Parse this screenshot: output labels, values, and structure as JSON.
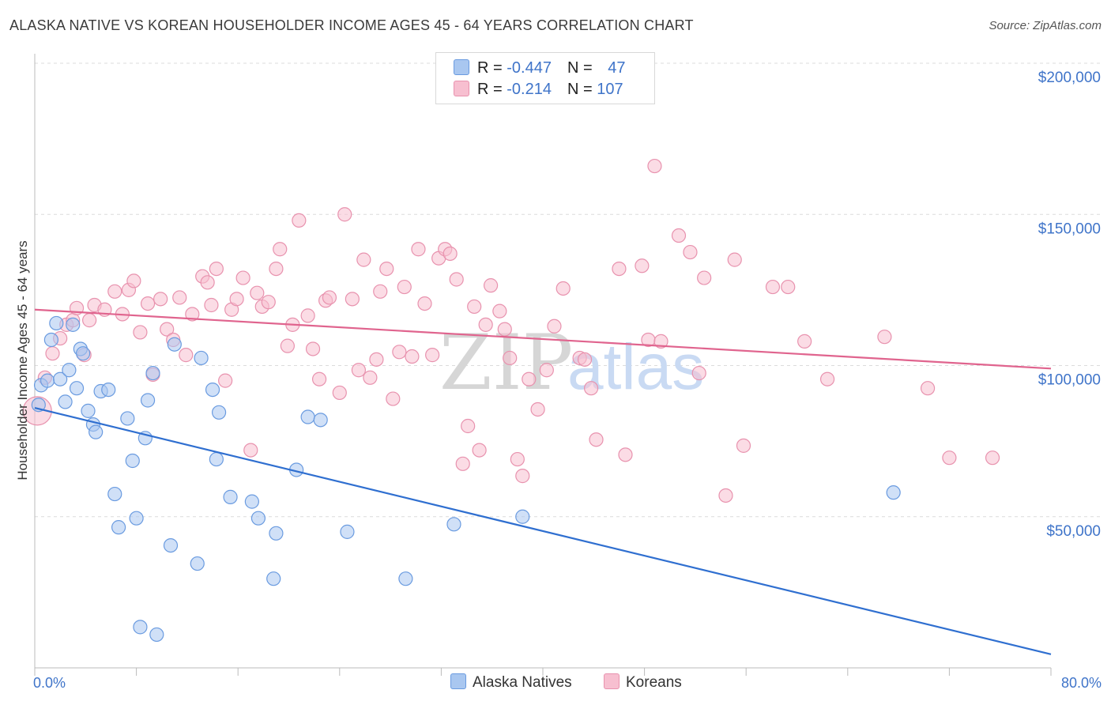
{
  "header": {
    "title": "ALASKA NATIVE VS KOREAN HOUSEHOLDER INCOME AGES 45 - 64 YEARS CORRELATION CHART",
    "source": "Source: ZipAtlas.com"
  },
  "legend": {
    "rows": [
      {
        "r_label": "R = ",
        "r_value": "-0.447",
        "n_label": "N = ",
        "n_value": "47"
      },
      {
        "r_label": "R = ",
        "r_value": "-0.214",
        "n_label": "N = ",
        "n_value": "107"
      }
    ]
  },
  "watermark": {
    "part1": "ZIP",
    "part2": "atlas"
  },
  "chart_data": {
    "type": "scatter",
    "title": "ALASKA NATIVE VS KOREAN HOUSEHOLDER INCOME AGES 45 - 64 YEARS CORRELATION CHART",
    "xlabel": "",
    "ylabel": "Householder Income Ages 45 - 64 years",
    "xlim": [
      0,
      80
    ],
    "ylim": [
      0,
      200000
    ],
    "x_tick_labels": [
      "0.0%",
      "80.0%"
    ],
    "y_tick_labels": [
      "$50,000",
      "$100,000",
      "$150,000",
      "$200,000"
    ],
    "y_ticks": [
      50000,
      100000,
      150000,
      200000
    ],
    "grid": true,
    "legend_placement": "bottom",
    "colors": {
      "alaska_fill": "#a9c7f0",
      "alaska_stroke": "#6a9be0",
      "alaska_line": "#2f6fd0",
      "korean_fill": "#f7bfd0",
      "korean_stroke": "#e892ae",
      "korean_line": "#e0648e"
    },
    "series": [
      {
        "name": "Alaska Natives",
        "trend": {
          "x": [
            0,
            80
          ],
          "y": [
            86000,
            4500
          ]
        },
        "points": [
          [
            0.3,
            87000
          ],
          [
            0.5,
            93500
          ],
          [
            1.0,
            95000
          ],
          [
            1.3,
            108500
          ],
          [
            1.7,
            114000
          ],
          [
            2.0,
            95500
          ],
          [
            2.4,
            88000
          ],
          [
            2.7,
            98500
          ],
          [
            3.0,
            113500
          ],
          [
            3.3,
            92500
          ],
          [
            3.6,
            105500
          ],
          [
            3.8,
            104000
          ],
          [
            4.2,
            85000
          ],
          [
            4.6,
            80500
          ],
          [
            4.8,
            78000
          ],
          [
            5.2,
            91500
          ],
          [
            5.8,
            92000
          ],
          [
            6.3,
            57500
          ],
          [
            6.6,
            46500
          ],
          [
            7.3,
            82500
          ],
          [
            7.7,
            68500
          ],
          [
            8.0,
            49500
          ],
          [
            8.3,
            13500
          ],
          [
            8.7,
            76000
          ],
          [
            8.9,
            88500
          ],
          [
            9.3,
            97500
          ],
          [
            9.6,
            11000
          ],
          [
            10.7,
            40500
          ],
          [
            11.0,
            107000
          ],
          [
            12.8,
            34500
          ],
          [
            13.1,
            102500
          ],
          [
            14.0,
            92000
          ],
          [
            14.3,
            69000
          ],
          [
            14.5,
            84500
          ],
          [
            15.4,
            56500
          ],
          [
            17.1,
            55000
          ],
          [
            17.6,
            49500
          ],
          [
            18.8,
            29500
          ],
          [
            19.0,
            44500
          ],
          [
            20.6,
            65500
          ],
          [
            21.5,
            83000
          ],
          [
            22.5,
            82000
          ],
          [
            24.6,
            45000
          ],
          [
            29.2,
            29500
          ],
          [
            33.0,
            47500
          ],
          [
            38.4,
            50000
          ],
          [
            67.6,
            58000
          ]
        ]
      },
      {
        "name": "Koreans",
        "trend": {
          "x": [
            0,
            80
          ],
          "y": [
            118500,
            99000
          ]
        },
        "points": [
          [
            0.2,
            85000
          ],
          [
            0.8,
            96000
          ],
          [
            1.4,
            104000
          ],
          [
            2.0,
            109000
          ],
          [
            2.5,
            113500
          ],
          [
            3.0,
            115000
          ],
          [
            3.3,
            119000
          ],
          [
            3.9,
            103500
          ],
          [
            4.3,
            115000
          ],
          [
            4.7,
            120000
          ],
          [
            5.5,
            118500
          ],
          [
            6.3,
            124500
          ],
          [
            6.9,
            117000
          ],
          [
            7.4,
            125000
          ],
          [
            7.8,
            128000
          ],
          [
            8.3,
            111000
          ],
          [
            8.9,
            120500
          ],
          [
            9.3,
            97000
          ],
          [
            9.9,
            122000
          ],
          [
            10.4,
            112000
          ],
          [
            10.9,
            108500
          ],
          [
            11.4,
            122500
          ],
          [
            11.9,
            103500
          ],
          [
            12.4,
            117000
          ],
          [
            13.2,
            129500
          ],
          [
            13.6,
            127500
          ],
          [
            13.9,
            120000
          ],
          [
            14.3,
            132000
          ],
          [
            15.0,
            95000
          ],
          [
            15.5,
            118500
          ],
          [
            15.9,
            122000
          ],
          [
            16.4,
            129000
          ],
          [
            17.0,
            72000
          ],
          [
            17.5,
            124000
          ],
          [
            17.9,
            119500
          ],
          [
            18.4,
            121000
          ],
          [
            19.0,
            132000
          ],
          [
            19.3,
            138500
          ],
          [
            19.9,
            106500
          ],
          [
            20.3,
            113500
          ],
          [
            20.8,
            148000
          ],
          [
            21.5,
            116500
          ],
          [
            21.9,
            105500
          ],
          [
            22.4,
            95500
          ],
          [
            22.9,
            121500
          ],
          [
            23.2,
            122500
          ],
          [
            24.0,
            91000
          ],
          [
            24.4,
            150000
          ],
          [
            25.0,
            122000
          ],
          [
            25.5,
            98500
          ],
          [
            25.9,
            135000
          ],
          [
            26.4,
            96000
          ],
          [
            26.9,
            102000
          ],
          [
            27.2,
            124500
          ],
          [
            27.7,
            132000
          ],
          [
            28.2,
            89000
          ],
          [
            28.7,
            104500
          ],
          [
            29.1,
            126000
          ],
          [
            29.7,
            103000
          ],
          [
            30.2,
            138500
          ],
          [
            30.7,
            120500
          ],
          [
            31.3,
            103500
          ],
          [
            31.8,
            135500
          ],
          [
            32.3,
            138500
          ],
          [
            32.7,
            137000
          ],
          [
            33.2,
            128500
          ],
          [
            33.7,
            67500
          ],
          [
            34.1,
            80000
          ],
          [
            34.6,
            119500
          ],
          [
            35.0,
            72000
          ],
          [
            35.5,
            113500
          ],
          [
            35.9,
            126500
          ],
          [
            36.6,
            118000
          ],
          [
            37.0,
            112000
          ],
          [
            37.4,
            102500
          ],
          [
            38.0,
            69000
          ],
          [
            38.4,
            63500
          ],
          [
            38.9,
            95500
          ],
          [
            39.6,
            85500
          ],
          [
            40.3,
            98500
          ],
          [
            40.9,
            113000
          ],
          [
            41.6,
            125500
          ],
          [
            42.9,
            102500
          ],
          [
            43.3,
            102000
          ],
          [
            43.8,
            92500
          ],
          [
            44.2,
            75500
          ],
          [
            46.0,
            132000
          ],
          [
            46.5,
            70500
          ],
          [
            47.8,
            133000
          ],
          [
            48.3,
            108500
          ],
          [
            48.8,
            166000
          ],
          [
            49.3,
            108000
          ],
          [
            50.7,
            143000
          ],
          [
            51.6,
            137500
          ],
          [
            52.3,
            97500
          ],
          [
            52.7,
            129000
          ],
          [
            54.4,
            57000
          ],
          [
            55.1,
            135000
          ],
          [
            55.8,
            73500
          ],
          [
            58.1,
            126000
          ],
          [
            59.3,
            126000
          ],
          [
            60.6,
            108000
          ],
          [
            62.4,
            95500
          ],
          [
            66.9,
            109500
          ],
          [
            70.3,
            92500
          ],
          [
            72.0,
            69500
          ],
          [
            75.4,
            69500
          ]
        ]
      }
    ]
  }
}
